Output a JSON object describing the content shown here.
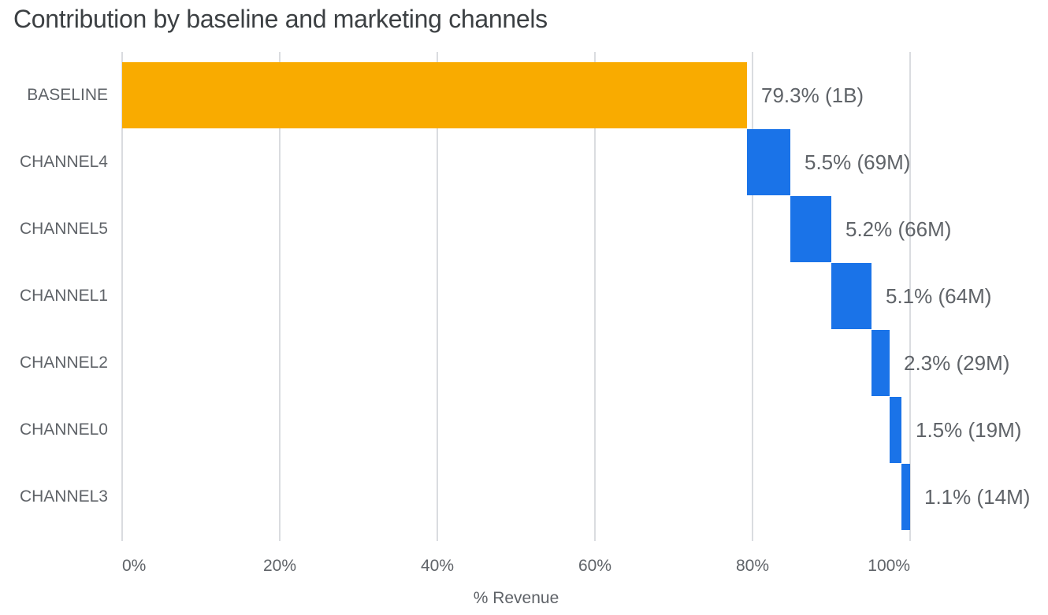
{
  "title": "Contribution by baseline and marketing channels",
  "colors": {
    "baseline_bar": "#F9AB00",
    "channel_bar": "#1A73E8",
    "gridline": "#DADCE0",
    "axis_text": "#5F6368",
    "title_text": "#3C4043",
    "background": "#FFFFFF"
  },
  "chart_data": {
    "type": "bar",
    "subtype": "horizontal-waterfall",
    "title": "Contribution by baseline and marketing channels",
    "xlabel": "% Revenue",
    "ylabel": "",
    "xlim": [
      0,
      100
    ],
    "grid": true,
    "legend": "none",
    "x_ticks": [
      {
        "value": 0,
        "label": "0%"
      },
      {
        "value": 20,
        "label": "20%"
      },
      {
        "value": 40,
        "label": "40%"
      },
      {
        "value": 60,
        "label": "60%"
      },
      {
        "value": 80,
        "label": "80%"
      },
      {
        "value": 100,
        "label": "100%"
      }
    ],
    "categories": [
      "BASELINE",
      "CHANNEL4",
      "CHANNEL5",
      "CHANNEL1",
      "CHANNEL2",
      "CHANNEL0",
      "CHANNEL3"
    ],
    "bars": [
      {
        "category": "BASELINE",
        "start": 0,
        "size": 79.3,
        "end": 79.3,
        "percent": "79.3%",
        "amount": "1B",
        "label": "79.3% (1B)",
        "color": "#F9AB00",
        "role": "baseline"
      },
      {
        "category": "CHANNEL4",
        "start": 79.3,
        "size": 5.5,
        "end": 84.8,
        "percent": "5.5%",
        "amount": "69M",
        "label": "5.5% (69M)",
        "color": "#1A73E8",
        "role": "channel"
      },
      {
        "category": "CHANNEL5",
        "start": 84.8,
        "size": 5.2,
        "end": 90.0,
        "percent": "5.2%",
        "amount": "66M",
        "label": "5.2% (66M)",
        "color": "#1A73E8",
        "role": "channel"
      },
      {
        "category": "CHANNEL1",
        "start": 90.0,
        "size": 5.1,
        "end": 95.1,
        "percent": "5.1%",
        "amount": "64M",
        "label": "5.1% (64M)",
        "color": "#1A73E8",
        "role": "channel"
      },
      {
        "category": "CHANNEL2",
        "start": 95.1,
        "size": 2.3,
        "end": 97.4,
        "percent": "2.3%",
        "amount": "29M",
        "label": "2.3% (29M)",
        "color": "#1A73E8",
        "role": "channel"
      },
      {
        "category": "CHANNEL0",
        "start": 97.4,
        "size": 1.5,
        "end": 98.9,
        "percent": "1.5%",
        "amount": "19M",
        "label": "1.5% (19M)",
        "color": "#1A73E8",
        "role": "channel"
      },
      {
        "category": "CHANNEL3",
        "start": 98.9,
        "size": 1.1,
        "end": 100.0,
        "percent": "1.1%",
        "amount": "14M",
        "label": "1.1% (14M)",
        "color": "#1A73E8",
        "role": "channel"
      }
    ]
  }
}
